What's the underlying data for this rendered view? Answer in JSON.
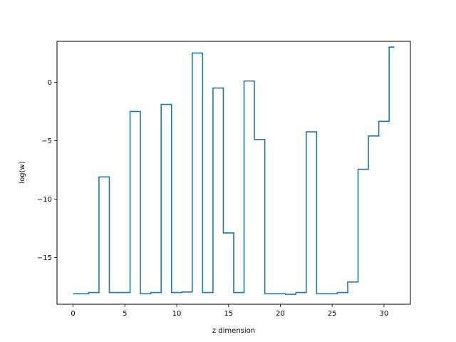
{
  "chart_data": {
    "type": "line",
    "drawstyle": "steps-mid",
    "xlabel": "z dimension",
    "ylabel": "log(w)",
    "xlim": [
      -1.55,
      32.55
    ],
    "ylim": [
      -19.0,
      3.5
    ],
    "xticks": [
      0,
      5,
      10,
      15,
      20,
      25,
      30
    ],
    "yticks": [
      -15,
      -10,
      -5,
      0
    ],
    "xtick_labels": [
      "0",
      "5",
      "10",
      "15",
      "20",
      "25",
      "30"
    ],
    "ytick_labels": [
      "−15",
      "−10",
      "−5",
      "0"
    ],
    "grid": false,
    "color": "#1f77b4",
    "series": [
      {
        "x": [
          0,
          1,
          2,
          3,
          4,
          5,
          6,
          7,
          8,
          9,
          10,
          11,
          12,
          13,
          14,
          15,
          16,
          17,
          18,
          19,
          20,
          21,
          22,
          23,
          24,
          25,
          26,
          27,
          28,
          29,
          30,
          31
        ],
        "values": [
          -18.1,
          -18.1,
          -18.0,
          -8.1,
          -18.0,
          -18.0,
          -2.5,
          -18.1,
          -18.0,
          -1.9,
          -18.0,
          -17.95,
          2.5,
          -18.0,
          -0.5,
          -12.9,
          -18.0,
          0.1,
          -4.9,
          -18.1,
          -18.1,
          -18.15,
          -18.0,
          -4.25,
          -18.1,
          -18.1,
          -18.0,
          -17.1,
          -7.45,
          -4.6,
          -3.35,
          3.0
        ]
      }
    ]
  }
}
